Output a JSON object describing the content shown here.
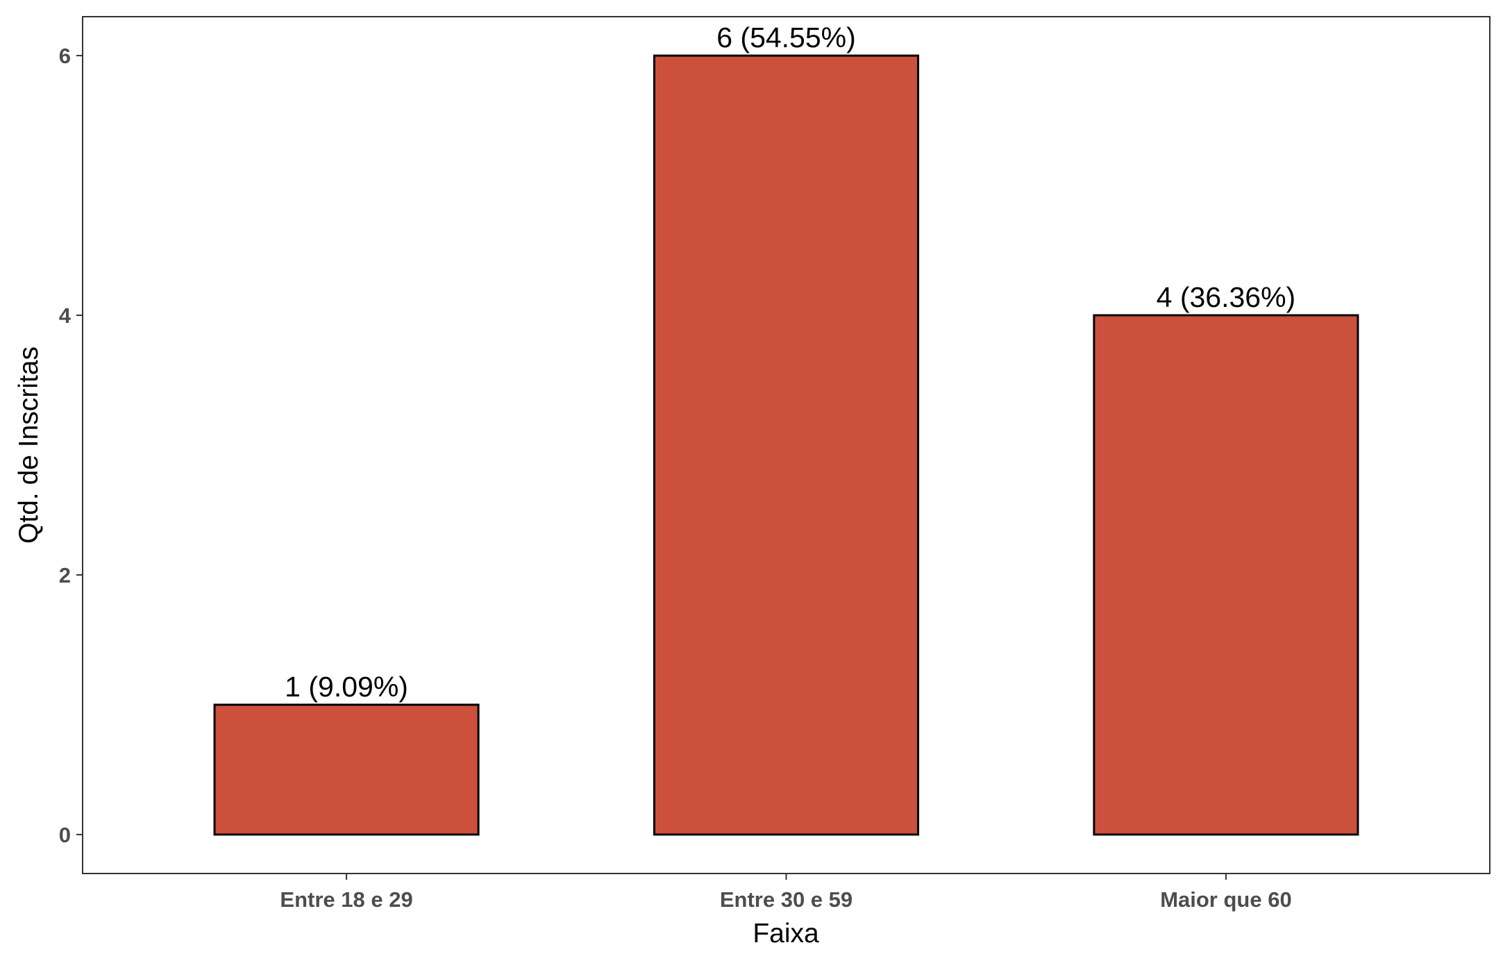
{
  "chart_data": {
    "type": "bar",
    "categories": [
      "Entre 18 e 29",
      "Entre 30 e 59",
      "Maior que 60"
    ],
    "values": [
      1,
      6,
      4
    ],
    "data_labels": [
      "1 (9.09%)",
      "6 (54.55%)",
      "4 (36.36%)"
    ],
    "xlabel": "Faixa",
    "ylabel": "Qtd. de Inscritas",
    "ylim": [
      -0.3,
      6.3
    ],
    "yticks": [
      0,
      2,
      4,
      6
    ],
    "ytick_labels": [
      "0",
      "2",
      "4",
      "6"
    ],
    "grid": false,
    "colors": {
      "bar_fill": "#cd503c",
      "bar_stroke": "#000000",
      "panel_border": "#333333",
      "tick_text": "#4d4d4d"
    }
  }
}
